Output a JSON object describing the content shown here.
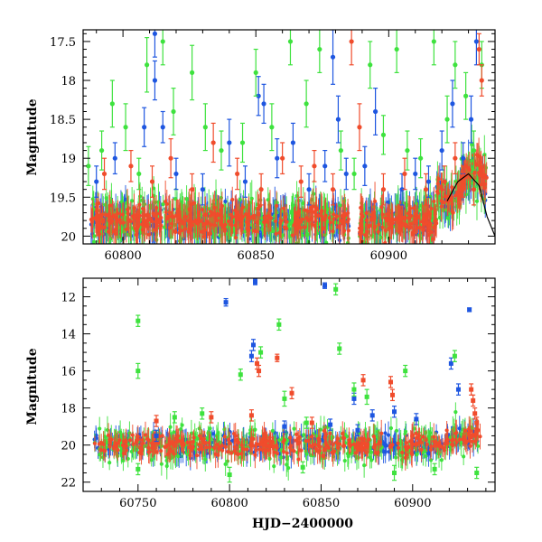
{
  "chart_data": [
    {
      "type": "scatter",
      "panel": "top",
      "title": "",
      "xlabel": "",
      "ylabel": "Magnitude",
      "xlim": [
        60785,
        60940
      ],
      "ylim": [
        20.1,
        17.35
      ],
      "y_inverted": true,
      "xticks": [
        60800,
        60850,
        60900
      ],
      "yticks": [
        17.5,
        18,
        18.5,
        19,
        19.5,
        20
      ],
      "ytick_labels": [
        "17.5",
        "18",
        "18.5",
        "19",
        "19.5",
        "20"
      ],
      "xtick_labels": [
        "60800",
        "60850",
        "60900"
      ],
      "baseline_magnitude": 19.8,
      "model_curve": {
        "color": "#000000",
        "points": [
          [
            60922,
            19.55
          ],
          [
            60926,
            19.3
          ],
          [
            60930,
            19.2
          ],
          [
            60934,
            19.35
          ],
          [
            60937,
            19.75
          ],
          [
            60940,
            20.0
          ]
        ]
      },
      "series": [
        {
          "color": "#1e56e0",
          "points": [
            [
              60790,
              19.3,
              0.2
            ],
            [
              60797,
              19.0,
              0.2
            ],
            [
              60808,
              18.6,
              0.25
            ],
            [
              60812,
              17.4,
              0.3
            ],
            [
              60812,
              18.0,
              0.25
            ],
            [
              60815,
              18.6,
              0.2
            ],
            [
              60820,
              19.2,
              0.2
            ],
            [
              60830,
              19.4,
              0.2
            ],
            [
              60840,
              18.8,
              0.3
            ],
            [
              60846,
              19.3,
              0.2
            ],
            [
              60851,
              18.2,
              0.25
            ],
            [
              60853,
              18.3,
              0.25
            ],
            [
              60858,
              19.0,
              0.25
            ],
            [
              60864,
              18.8,
              0.25
            ],
            [
              60870,
              19.4,
              0.2
            ],
            [
              60876,
              19.1,
              0.2
            ],
            [
              60879,
              17.7,
              0.35
            ],
            [
              60881,
              18.5,
              0.3
            ],
            [
              60884,
              19.2,
              0.2
            ],
            [
              60891,
              19.1,
              0.25
            ],
            [
              60895,
              18.4,
              0.3
            ],
            [
              60905,
              19.4,
              0.2
            ],
            [
              60910,
              19.2,
              0.2
            ],
            [
              60915,
              19.3,
              0.2
            ],
            [
              60920,
              18.9,
              0.25
            ],
            [
              60924,
              18.3,
              0.3
            ],
            [
              60928,
              19.0,
              0.2
            ],
            [
              60931,
              18.5,
              0.3
            ],
            [
              60933,
              17.5,
              0.3
            ]
          ]
        },
        {
          "color": "#3ee23e",
          "points": [
            [
              60787,
              19.1,
              0.25
            ],
            [
              60792,
              18.9,
              0.25
            ],
            [
              60796,
              18.3,
              0.3
            ],
            [
              60801,
              18.6,
              0.3
            ],
            [
              60806,
              19.2,
              0.2
            ],
            [
              60809,
              17.8,
              0.35
            ],
            [
              60815,
              17.5,
              0.3
            ],
            [
              60819,
              18.4,
              0.3
            ],
            [
              60826,
              17.9,
              0.35
            ],
            [
              60831,
              18.6,
              0.3
            ],
            [
              60837,
              18.9,
              0.25
            ],
            [
              60845,
              18.8,
              0.25
            ],
            [
              60850,
              17.9,
              0.3
            ],
            [
              60856,
              18.6,
              0.3
            ],
            [
              60863,
              17.5,
              0.3
            ],
            [
              60869,
              18.3,
              0.3
            ],
            [
              60874,
              17.6,
              0.3
            ],
            [
              60882,
              18.9,
              0.25
            ],
            [
              60887,
              19.2,
              0.2
            ],
            [
              60893,
              17.8,
              0.3
            ],
            [
              60898,
              18.7,
              0.25
            ],
            [
              60903,
              17.6,
              0.3
            ],
            [
              60907,
              18.9,
              0.25
            ],
            [
              60912,
              19.0,
              0.25
            ],
            [
              60917,
              17.5,
              0.3
            ],
            [
              60922,
              18.5,
              0.3
            ],
            [
              60925,
              17.8,
              0.3
            ],
            [
              60929,
              18.2,
              0.3
            ],
            [
              60932,
              18.9,
              0.25
            ],
            [
              60935,
              17.8,
              0.3
            ]
          ]
        },
        {
          "color": "#f04c2c",
          "points": [
            [
              60793,
              19.2,
              0.2
            ],
            [
              60803,
              19.1,
              0.2
            ],
            [
              60811,
              19.3,
              0.2
            ],
            [
              60818,
              19.0,
              0.25
            ],
            [
              60826,
              19.4,
              0.2
            ],
            [
              60834,
              18.8,
              0.25
            ],
            [
              60843,
              19.2,
              0.2
            ],
            [
              60852,
              19.4,
              0.2
            ],
            [
              60860,
              19.0,
              0.2
            ],
            [
              60867,
              19.3,
              0.2
            ],
            [
              60872,
              19.1,
              0.2
            ],
            [
              60879,
              19.4,
              0.2
            ],
            [
              60886,
              17.5,
              0.3
            ],
            [
              60889,
              18.6,
              0.3
            ],
            [
              60898,
              19.4,
              0.2
            ],
            [
              60906,
              19.2,
              0.2
            ],
            [
              60914,
              19.4,
              0.2
            ],
            [
              60921,
              19.3,
              0.2
            ],
            [
              60925,
              19.0,
              0.2
            ],
            [
              60928,
              19.3,
              0.2
            ],
            [
              60932,
              19.4,
              0.2
            ],
            [
              60934,
              17.6,
              0.2
            ],
            [
              60935,
              18.0,
              0.2
            ]
          ]
        }
      ]
    },
    {
      "type": "scatter",
      "panel": "bottom",
      "title": "",
      "xlabel": "HJD−2400000",
      "ylabel": "Magnitude",
      "xlim": [
        60720,
        60945
      ],
      "ylim": [
        22.5,
        11
      ],
      "y_inverted": true,
      "xticks": [
        60750,
        60800,
        60850,
        60900
      ],
      "yticks": [
        12,
        14,
        16,
        18,
        20,
        22
      ],
      "ytick_labels": [
        "12",
        "14",
        "16",
        "18",
        "20",
        "22"
      ],
      "xtick_labels": [
        "60750",
        "60800",
        "60850",
        "60900"
      ],
      "baseline_magnitude": 20.0,
      "series": [
        {
          "color": "#1e56e0",
          "points": [
            [
              60798,
              12.3,
              0.2
            ],
            [
              60814,
              11.2,
              0.15
            ],
            [
              60852,
              11.4,
              0.15
            ],
            [
              60813,
              14.6,
              0.3
            ],
            [
              60812,
              15.2,
              0.3
            ],
            [
              60868,
              17.5,
              0.3
            ],
            [
              60878,
              18.4,
              0.3
            ],
            [
              60890,
              18.2,
              0.3
            ],
            [
              60902,
              18.6,
              0.3
            ],
            [
              60921,
              15.6,
              0.3
            ],
            [
              60925,
              17.0,
              0.3
            ],
            [
              60931,
              12.7,
              0.1
            ],
            [
              60760,
              19.5,
              0.3
            ],
            [
              60830,
              19.0,
              0.3
            ],
            [
              60855,
              18.9,
              0.3
            ],
            [
              60870,
              19.2,
              0.3
            ]
          ]
        },
        {
          "color": "#3ee23e",
          "points": [
            [
              60750,
              13.3,
              0.3
            ],
            [
              60750,
              16.0,
              0.4
            ],
            [
              60806,
              16.2,
              0.3
            ],
            [
              60817,
              15.0,
              0.3
            ],
            [
              60827,
              13.5,
              0.3
            ],
            [
              60858,
              11.6,
              0.3
            ],
            [
              60860,
              14.8,
              0.3
            ],
            [
              60868,
              17.0,
              0.35
            ],
            [
              60896,
              16.0,
              0.3
            ],
            [
              60923,
              15.2,
              0.3
            ],
            [
              60770,
              18.5,
              0.3
            ],
            [
              60785,
              18.3,
              0.3
            ],
            [
              60830,
              17.5,
              0.4
            ],
            [
              60842,
              18.8,
              0.3
            ],
            [
              60875,
              17.4,
              0.4
            ],
            [
              60750,
              21.3,
              0.3
            ],
            [
              60800,
              21.6,
              0.4
            ],
            [
              60840,
              21.2,
              0.3
            ],
            [
              60890,
              21.5,
              0.4
            ],
            [
              60912,
              21.3,
              0.3
            ],
            [
              60935,
              21.5,
              0.3
            ]
          ]
        },
        {
          "color": "#f04c2c",
          "points": [
            [
              60815,
              15.6,
              0.3
            ],
            [
              60816,
              16.0,
              0.3
            ],
            [
              60826,
              15.3,
              0.2
            ],
            [
              60834,
              17.2,
              0.3
            ],
            [
              60873,
              16.5,
              0.3
            ],
            [
              60888,
              16.6,
              0.3
            ],
            [
              60889,
              17.3,
              0.3
            ],
            [
              60760,
              18.7,
              0.3
            ],
            [
              60790,
              18.5,
              0.3
            ],
            [
              60812,
              18.4,
              0.3
            ],
            [
              60845,
              18.8,
              0.3
            ],
            [
              60932,
              17.0,
              0.3
            ],
            [
              60933,
              17.6,
              0.3
            ],
            [
              60934,
              18.3,
              0.3
            ],
            [
              60935,
              18.8,
              0.3
            ]
          ]
        }
      ]
    }
  ]
}
